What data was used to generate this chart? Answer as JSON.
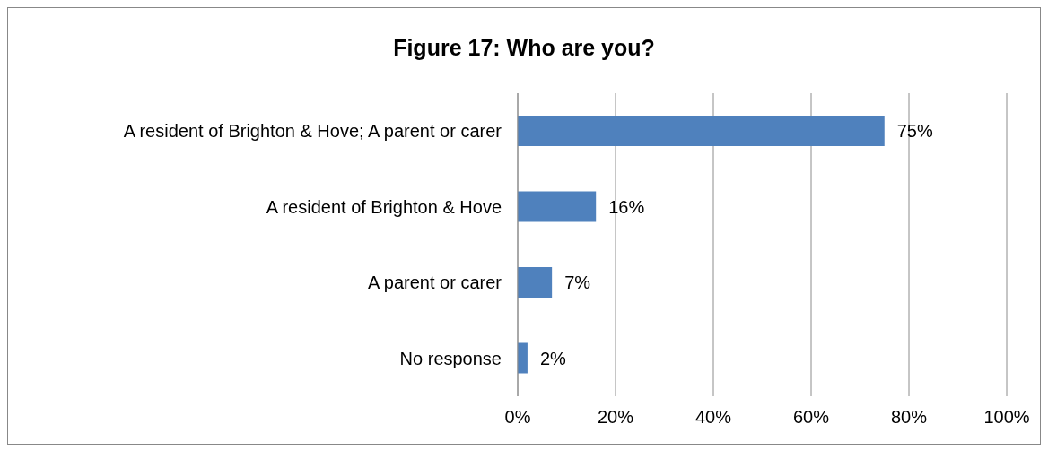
{
  "chart_data": {
    "type": "bar",
    "orientation": "horizontal",
    "title": "Figure 17: Who are you?",
    "categories": [
      "A resident of Brighton & Hove; A parent or carer",
      "A resident of Brighton & Hove",
      "A parent or carer",
      "No response"
    ],
    "values": [
      75,
      16,
      7,
      2
    ],
    "color": "#4f81bd",
    "value_labels": [
      "75%",
      "16%",
      "7%",
      "2%"
    ],
    "xlim": [
      0,
      100
    ],
    "xticks": [
      {
        "value": 0,
        "label": "0%"
      },
      {
        "value": 20,
        "label": "20%"
      },
      {
        "value": 40,
        "label": "40%"
      },
      {
        "value": 60,
        "label": "60%"
      },
      {
        "value": 80,
        "label": "80%"
      },
      {
        "value": 100,
        "label": "100%"
      }
    ],
    "grid": "x"
  }
}
